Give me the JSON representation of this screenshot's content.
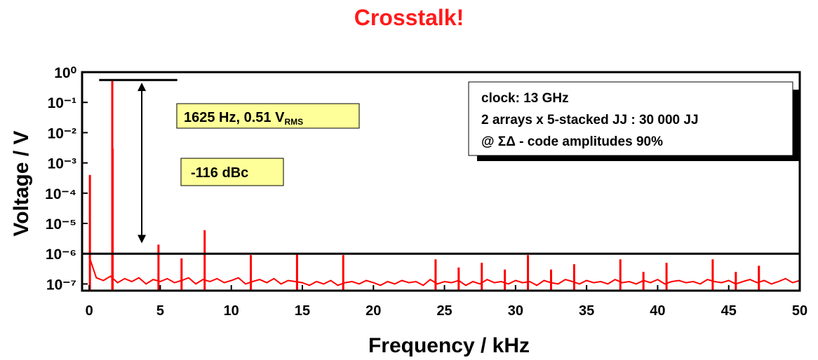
{
  "chart_data": {
    "type": "spectrum",
    "title": "Crosstalk!",
    "x_label": "Frequency / kHz",
    "y_label": "Voltage / V",
    "color": "#ff0000",
    "log_y": true,
    "xlim": [
      -0.5,
      50
    ],
    "ylim": [
      6e-08,
      1
    ],
    "xticks": [
      0,
      5,
      10,
      15,
      20,
      25,
      30,
      35,
      40,
      45,
      50
    ],
    "yticks": [
      {
        "value": 1e-07,
        "label": "10⁻⁷"
      },
      {
        "value": 1e-06,
        "label": "10⁻⁶"
      },
      {
        "value": 1e-05,
        "label": "10⁻⁵"
      },
      {
        "value": 0.0001,
        "label": "10⁻⁴"
      },
      {
        "value": 0.001,
        "label": "10⁻³"
      },
      {
        "value": 0.01,
        "label": "10⁻²"
      },
      {
        "value": 0.1,
        "label": "10⁻¹"
      },
      {
        "value": 1,
        "label": "10⁰"
      }
    ],
    "noise": {
      "x": [
        0,
        0.5,
        1,
        1.5,
        2,
        2.5,
        3,
        3.5,
        4,
        4.5,
        5,
        5.5,
        6,
        6.5,
        7,
        7.5,
        8,
        8.5,
        9,
        9.5,
        10,
        10.5,
        11,
        11.5,
        12,
        12.5,
        13,
        13.5,
        14,
        14.5,
        15,
        15.5,
        16,
        16.5,
        17,
        17.5,
        18,
        18.5,
        19,
        19.5,
        20,
        20.5,
        21,
        21.5,
        22,
        22.5,
        23,
        23.5,
        24,
        24.5,
        25,
        25.5,
        26,
        26.5,
        27,
        27.5,
        28,
        28.5,
        29,
        29.5,
        30,
        30.5,
        31,
        31.5,
        32,
        32.5,
        33,
        33.5,
        34,
        34.5,
        35,
        35.5,
        36,
        36.5,
        37,
        37.5,
        38,
        38.5,
        39,
        39.5,
        40,
        40.5,
        41,
        41.5,
        42,
        42.5,
        43,
        43.5,
        44,
        44.5,
        45,
        45.5,
        46,
        46.5,
        47,
        47.5,
        48,
        48.5,
        49,
        49.5,
        50
      ],
      "values": [
        8e-07,
        1.6e-07,
        1.3e-07,
        1.8e-07,
        1.1e-07,
        1.5e-07,
        1.2e-07,
        1.6e-07,
        1e-07,
        1.4e-07,
        1.2e-07,
        1.5e-07,
        1.1e-07,
        1.3e-07,
        1.6e-07,
        1e-07,
        1.4e-07,
        1.2e-07,
        1.5e-07,
        1.1e-07,
        1.3e-07,
        1.6e-07,
        1e-07,
        1.2e-07,
        1.4e-07,
        1.1e-07,
        1.5e-07,
        1e-07,
        1.3e-07,
        1.2e-07,
        1.1e-07,
        9e-08,
        1.2e-07,
        1e-07,
        1.3e-07,
        9e-08,
        1.1e-07,
        1.2e-07,
        1e-07,
        1.3e-07,
        1.1e-07,
        9e-08,
        1.2e-07,
        1e-07,
        1.3e-07,
        1.1e-07,
        1.2e-07,
        9e-08,
        1.4e-07,
        1e-07,
        1.2e-07,
        1.1e-07,
        1.3e-07,
        9e-08,
        1.2e-07,
        1e-07,
        1.4e-07,
        1.1e-07,
        1.2e-07,
        1e-07,
        1.3e-07,
        1.1e-07,
        1.2e-07,
        9e-08,
        1.3e-07,
        1.1e-07,
        1e-07,
        1.4e-07,
        1.2e-07,
        1e-07,
        1.3e-07,
        1.1e-07,
        1.2e-07,
        1e-07,
        1.4e-07,
        1.1e-07,
        1.2e-07,
        1e-07,
        1.3e-07,
        1.1e-07,
        1.4e-07,
        1e-07,
        1.2e-07,
        1.3e-07,
        1.1e-07,
        1.2e-07,
        1e-07,
        1.4e-07,
        1.2e-07,
        1.1e-07,
        1.3e-07,
        1e-07,
        1.2e-07,
        1.4e-07,
        1.1e-07,
        1.3e-07,
        1e-07,
        1.2e-07,
        1.5e-07,
        1.1e-07,
        1.3e-07
      ]
    },
    "peaks": {
      "x": [
        0.05,
        1.625,
        1.65,
        4.875,
        6.5,
        8.125,
        11.375,
        14.625,
        17.875,
        24.375,
        26,
        27.625,
        29.25,
        30.875,
        32.5,
        34.125,
        37.375,
        39,
        40.625,
        43.875,
        45.5,
        47.125
      ],
      "values": [
        0.0004,
        0.51,
        0.003,
        2e-06,
        7e-07,
        6e-06,
        9e-07,
        1e-06,
        9e-07,
        6.5e-07,
        3.5e-07,
        5e-07,
        3e-07,
        9e-07,
        3e-07,
        4.5e-07,
        6.5e-07,
        2.5e-07,
        5e-07,
        6.5e-07,
        2.5e-07,
        4e-07
      ]
    },
    "reference_lines": [
      {
        "value": 0.55,
        "xrange": [
          0.7,
          6.2
        ]
      },
      {
        "value": 1e-06
      }
    ],
    "arrow": {
      "x": 3.7,
      "from": 0.45,
      "to": 2.2e-06
    },
    "annotations": [
      {
        "text": "1625 Hz, 0.51 V",
        "subscript": "RMS"
      },
      {
        "text": "-116 dBc"
      }
    ],
    "info_box": [
      "clock: 13 GHz",
      "2 arrays x 5-stacked JJ : 30 000 JJ",
      "@ ΣΔ - code amplitudes 90%"
    ]
  }
}
